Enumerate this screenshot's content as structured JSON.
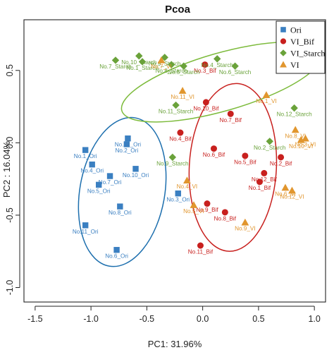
{
  "chart_data": {
    "type": "scatter",
    "title": "Pcoa",
    "xlabel": "PC1: 31.96%",
    "ylabel": "PC2 : 16.04%",
    "xlim": [
      -1.6,
      1.1
    ],
    "ylim": [
      -1.1,
      0.85
    ],
    "xticks": [
      -1.5,
      -1.0,
      -0.5,
      0.0,
      0.5,
      1.0
    ],
    "yticks": [
      -1.0,
      -0.5,
      0.0,
      0.5
    ],
    "xtick_labels": [
      "-1.5",
      "-1.0",
      "-0.5",
      "0.0",
      "0.5",
      "1.0"
    ],
    "ytick_labels": [
      "-1.0",
      "-0.5",
      "0.0",
      "0.5"
    ],
    "grid": false,
    "legend_position": "top-right",
    "series": [
      {
        "name": "Ori",
        "color": "#3a7fc1",
        "marker": "square",
        "points": [
          {
            "label": "No.1_Ori",
            "x": -1.05,
            "y": -0.05
          },
          {
            "label": "No.12_Ori",
            "x": -0.67,
            "y": 0.03
          },
          {
            "label": "No.2_Ori",
            "x": -0.68,
            "y": -0.01
          },
          {
            "label": "No.4_Ori",
            "x": -0.99,
            "y": -0.15
          },
          {
            "label": "No.10_Ori",
            "x": -0.6,
            "y": -0.18
          },
          {
            "label": "No.7_Ori",
            "x": -0.83,
            "y": -0.23
          },
          {
            "label": "No.5_Ori",
            "x": -0.93,
            "y": -0.29
          },
          {
            "label": "No.3_Ori",
            "x": -0.22,
            "y": -0.35
          },
          {
            "label": "No.8_Ori",
            "x": -0.74,
            "y": -0.44
          },
          {
            "label": "No.11_Ori",
            "x": -1.05,
            "y": -0.57
          },
          {
            "label": "No.6_Ori",
            "x": -0.77,
            "y": -0.74
          }
        ]
      },
      {
        "name": "VI_Bif",
        "color": "#c8201e",
        "marker": "circle",
        "points": [
          {
            "label": "No.3_Bif",
            "x": 0.02,
            "y": 0.54
          },
          {
            "label": "No.10_Bif",
            "x": 0.03,
            "y": 0.28
          },
          {
            "label": "No.7_Bif",
            "x": 0.25,
            "y": 0.2
          },
          {
            "label": "No.4_Bif",
            "x": -0.2,
            "y": 0.07
          },
          {
            "label": "No.6_Bif",
            "x": 0.1,
            "y": -0.04
          },
          {
            "label": "No.5_Bif",
            "x": 0.38,
            "y": -0.09
          },
          {
            "label": "No.2_Bif",
            "x": 0.7,
            "y": -0.1
          },
          {
            "label": "No.12_Bif",
            "x": 0.55,
            "y": -0.21
          },
          {
            "label": "No.1_Bif",
            "x": 0.51,
            "y": -0.27
          },
          {
            "label": "No.9_Bif",
            "x": 0.04,
            "y": -0.42
          },
          {
            "label": "No.8_Bif",
            "x": 0.2,
            "y": -0.48
          },
          {
            "label": "No.11_Bif",
            "x": -0.02,
            "y": -0.71
          }
        ]
      },
      {
        "name": "VI_Starch",
        "color": "#6aa23a",
        "marker": "diamond",
        "points": [
          {
            "label": "No.10_Starch",
            "x": -0.57,
            "y": 0.6
          },
          {
            "label": "No.7_Starch",
            "x": -0.78,
            "y": 0.57
          },
          {
            "label": "No.1_Starch",
            "x": -0.54,
            "y": 0.56
          },
          {
            "label": "No.9_Starch",
            "x": -0.34,
            "y": 0.59
          },
          {
            "label": "No.8_Starch",
            "x": -0.28,
            "y": 0.54
          },
          {
            "label": "No.5_Starch",
            "x": -0.17,
            "y": 0.53
          },
          {
            "label": "No.4_Starch",
            "x": 0.13,
            "y": 0.58
          },
          {
            "label": "No.6_Starch",
            "x": 0.29,
            "y": 0.53
          },
          {
            "label": "No.11_Starch",
            "x": -0.24,
            "y": 0.26
          },
          {
            "label": "No.12_Starch",
            "x": 0.82,
            "y": 0.24
          },
          {
            "label": "No.2_Starch",
            "x": 0.6,
            "y": 0.01
          },
          {
            "label": "No.9_Starch",
            "x": -0.27,
            "y": -0.1
          }
        ]
      },
      {
        "name": "VI",
        "color": "#e1962e",
        "marker": "triangle",
        "points": [
          {
            "label": "No.7_VI",
            "x": -0.37,
            "y": 0.57
          },
          {
            "label": "No.11_VI",
            "x": -0.18,
            "y": 0.36
          },
          {
            "label": "No.1_VI",
            "x": 0.57,
            "y": 0.33
          },
          {
            "label": "No.8_VI",
            "x": 0.83,
            "y": 0.09
          },
          {
            "label": "No.3_VI",
            "x": 0.92,
            "y": 0.03
          },
          {
            "label": "No.10_VI",
            "x": 0.88,
            "y": 0.02
          },
          {
            "label": "No.4_VI",
            "x": -0.14,
            "y": -0.26
          },
          {
            "label": "No.6_VI",
            "x": 0.74,
            "y": -0.31
          },
          {
            "label": "No.12_VI",
            "x": 0.8,
            "y": -0.33
          },
          {
            "label": "No.5_VI",
            "x": -0.08,
            "y": -0.43
          },
          {
            "label": "No.9_VI",
            "x": 0.38,
            "y": -0.55
          }
        ]
      }
    ],
    "ellipses": [
      {
        "group": "Ori",
        "color": "#1d6fae",
        "cx": -0.72,
        "cy": -0.34,
        "rx": 0.38,
        "ry": 0.52,
        "rotation": 10
      },
      {
        "group": "VI_Bif",
        "color": "#c8201e",
        "cx": 0.27,
        "cy": -0.17,
        "rx": 0.39,
        "ry": 0.58,
        "rotation": 3
      },
      {
        "group": "VI_Starch",
        "color": "#7dbb3c",
        "cx": 0.17,
        "cy": 0.42,
        "rx": 0.93,
        "ry": 0.2,
        "rotation": -16
      }
    ]
  }
}
